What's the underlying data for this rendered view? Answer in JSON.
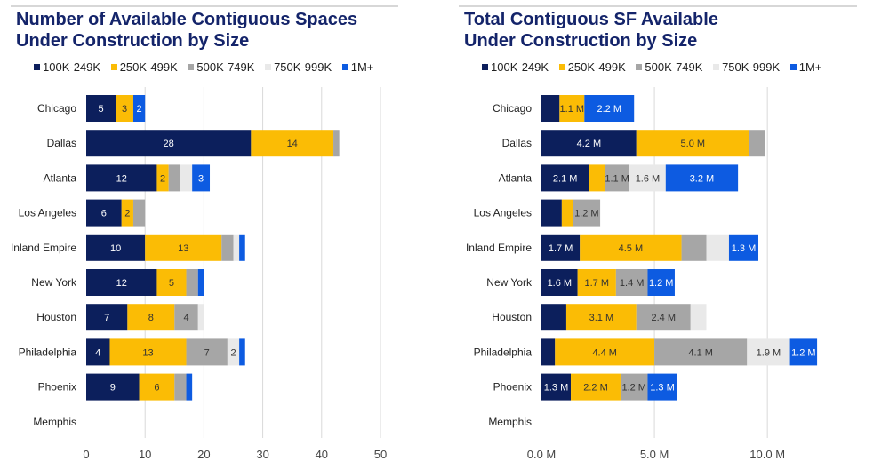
{
  "colors": {
    "100K-249K": "#0c1f5c",
    "250K-499K": "#fbbc05",
    "500K-749K": "#a6a6a6",
    "750K-999K": "#e9e9e9",
    "1M+": "#0d5be1",
    "grid": "#d9d9d9",
    "title": "#14246a"
  },
  "chart_data": [
    {
      "type": "bar",
      "orientation": "horizontal",
      "stacked": true,
      "title": "Number of Available Contiguous Spaces Under Construction by Size",
      "title_lines": [
        "Number of Available Contiguous Spaces",
        "Under Construction by Size"
      ],
      "categories": [
        "Chicago",
        "Dallas",
        "Atlanta",
        "Los Angeles",
        "Inland Empire",
        "New York",
        "Houston",
        "Philadelphia",
        "Phoenix",
        "Memphis"
      ],
      "series": [
        {
          "name": "100K-249K",
          "values": [
            5,
            28,
            12,
            6,
            10,
            12,
            7,
            4,
            9,
            0
          ],
          "labels": [
            "5",
            "28",
            "12",
            "6",
            "10",
            "12",
            "7",
            "4",
            "9",
            ""
          ]
        },
        {
          "name": "250K-499K",
          "values": [
            3,
            14,
            2,
            2,
            13,
            5,
            8,
            13,
            6,
            0
          ],
          "labels": [
            "3",
            "14",
            "2",
            "2",
            "13",
            "5",
            "8",
            "13",
            "6",
            ""
          ]
        },
        {
          "name": "500K-749K",
          "values": [
            0,
            1,
            2,
            2,
            2,
            2,
            4,
            7,
            2,
            0
          ],
          "labels": [
            "",
            "",
            "",
            "",
            "",
            "",
            "4",
            "7",
            "",
            ""
          ]
        },
        {
          "name": "750K-999K",
          "values": [
            0,
            0,
            2,
            0,
            1,
            0,
            1,
            2,
            0,
            0
          ],
          "labels": [
            "",
            "",
            "",
            "",
            "",
            "",
            "",
            "2",
            "",
            ""
          ]
        },
        {
          "name": "1M+",
          "values": [
            2,
            0,
            3,
            0,
            1,
            1,
            0,
            1,
            1,
            0
          ],
          "labels": [
            "2",
            "",
            "3",
            "",
            "",
            "",
            "",
            "",
            "",
            ""
          ]
        }
      ],
      "xlim": [
        0,
        50
      ],
      "xticks": [
        0,
        10,
        20,
        30,
        40,
        50
      ],
      "xtick_labels": [
        "0",
        "10",
        "20",
        "30",
        "40",
        "50"
      ],
      "grid": true,
      "legend_position": "top"
    },
    {
      "type": "bar",
      "orientation": "horizontal",
      "stacked": true,
      "title": "Total Contiguous SF Available Under Construction by Size",
      "title_lines": [
        "Total Contiguous SF Available",
        "Under Construction by Size"
      ],
      "categories": [
        "Chicago",
        "Dallas",
        "Atlanta",
        "Los Angeles",
        "Inland Empire",
        "New York",
        "Houston",
        "Philadelphia",
        "Phoenix",
        "Memphis"
      ],
      "series": [
        {
          "name": "100K-249K",
          "values": [
            0.8,
            4.2,
            2.1,
            0.9,
            1.7,
            1.6,
            1.1,
            0.6,
            1.3,
            0
          ],
          "labels": [
            "",
            "4.2 M",
            "2.1 M",
            "",
            "1.7 M",
            "1.6 M",
            "",
            "",
            "1.3 M",
            ""
          ]
        },
        {
          "name": "250K-499K",
          "values": [
            1.1,
            5.0,
            0.7,
            0.5,
            4.5,
            1.7,
            3.1,
            4.4,
            2.2,
            0
          ],
          "labels": [
            "1.1 M",
            "5.0 M",
            "",
            "",
            "4.5 M",
            "1.7 M",
            "3.1 M",
            "4.4 M",
            "2.2 M",
            ""
          ]
        },
        {
          "name": "500K-749K",
          "values": [
            0,
            0.7,
            1.1,
            1.2,
            1.1,
            1.4,
            2.4,
            4.1,
            1.2,
            0
          ],
          "labels": [
            "",
            "",
            "1.1 M",
            "1.2 M",
            "",
            "1.4 M",
            "2.4 M",
            "4.1 M",
            "1.2 M",
            ""
          ]
        },
        {
          "name": "750K-999K",
          "values": [
            0,
            0,
            1.6,
            0,
            1.0,
            0,
            0.7,
            1.9,
            0,
            0
          ],
          "labels": [
            "",
            "",
            "1.6 M",
            "",
            "",
            "",
            "",
            "1.9 M",
            "",
            ""
          ]
        },
        {
          "name": "1M+",
          "values": [
            2.2,
            0,
            3.2,
            0,
            1.3,
            1.2,
            0,
            1.2,
            1.3,
            0
          ],
          "labels": [
            "2.2 M",
            "",
            "3.2 M",
            "",
            "1.3 M",
            "1.2 M",
            "",
            "1.2 M",
            "1.3 M",
            ""
          ]
        }
      ],
      "xlim": [
        0,
        12
      ],
      "xticks": [
        0,
        5,
        10
      ],
      "xtick_labels": [
        "0.0 M",
        "5.0 M",
        "10.0 M"
      ],
      "grid": true,
      "legend_position": "top"
    }
  ]
}
